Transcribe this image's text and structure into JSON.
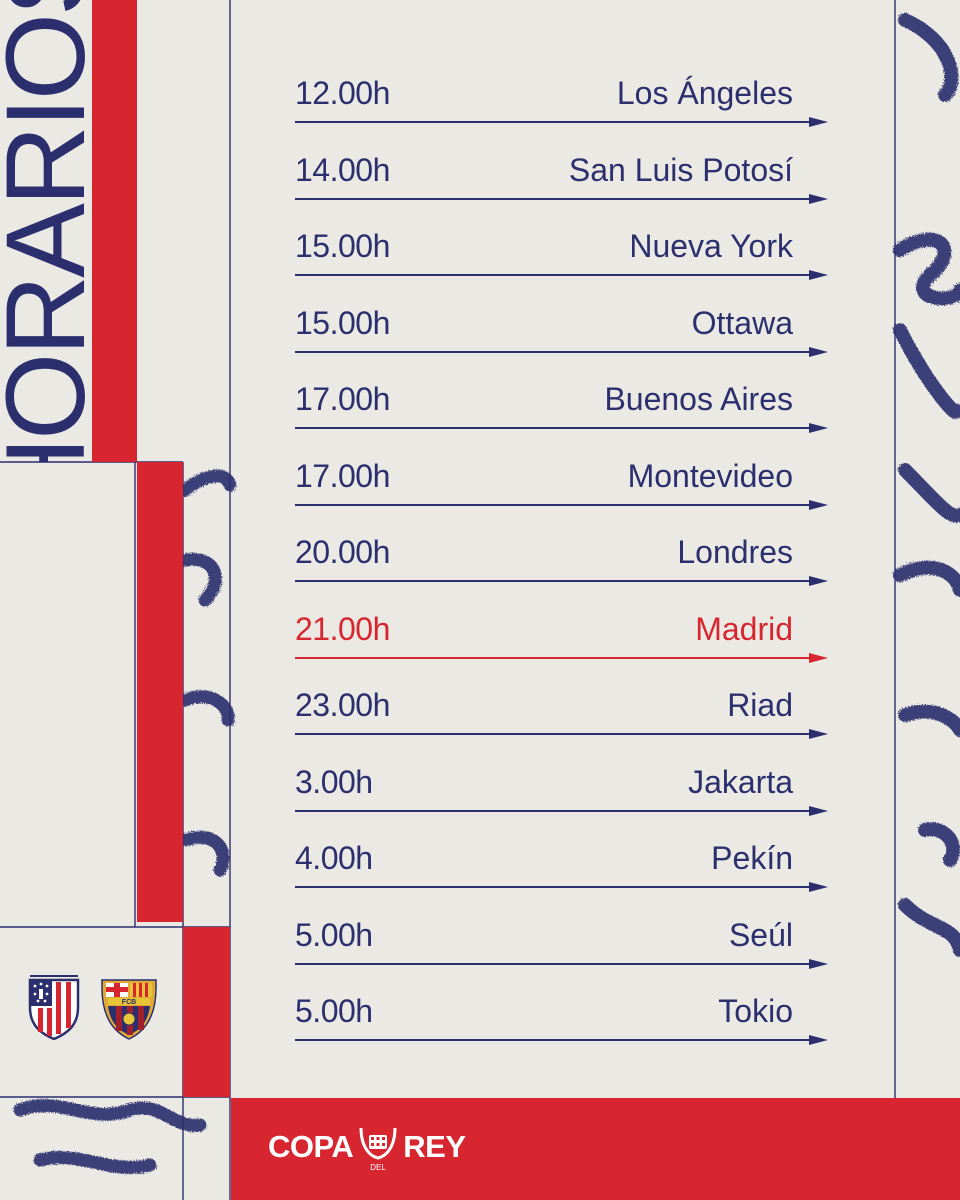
{
  "title": "HORARIOS",
  "colors": {
    "navy": "#2b2f6e",
    "red": "#d7262f",
    "paper": "#ebe9e3",
    "white": "#ffffff"
  },
  "schedule": [
    {
      "time": "12.00h",
      "city": "Los Ángeles"
    },
    {
      "time": "14.00h",
      "city": "San Luis Potosí"
    },
    {
      "time": "15.00h",
      "city": "Nueva York"
    },
    {
      "time": "15.00h",
      "city": "Ottawa"
    },
    {
      "time": "17.00h",
      "city": "Buenos Aires"
    },
    {
      "time": "17.00h",
      "city": "Montevideo"
    },
    {
      "time": "20.00h",
      "city": "Londres"
    },
    {
      "time": "21.00h",
      "city": "Madrid",
      "highlight": true
    },
    {
      "time": "23.00h",
      "city": "Riad"
    },
    {
      "time": "3.00h",
      "city": "Jakarta"
    },
    {
      "time": "4.00h",
      "city": "Pekín"
    },
    {
      "time": "5.00h",
      "city": "Seúl"
    },
    {
      "time": "5.00h",
      "city": "Tokio"
    }
  ],
  "teams": [
    {
      "name": "atletico-madrid",
      "icon": "atletico-madrid-crest-icon"
    },
    {
      "name": "fc-barcelona",
      "icon": "fc-barcelona-crest-icon",
      "crest_text": "FCB"
    }
  ],
  "footer": {
    "brand_left": "COPA",
    "brand_small": "DEL",
    "brand_right": "REY",
    "icon": "copa-del-rey-crown-icon"
  }
}
